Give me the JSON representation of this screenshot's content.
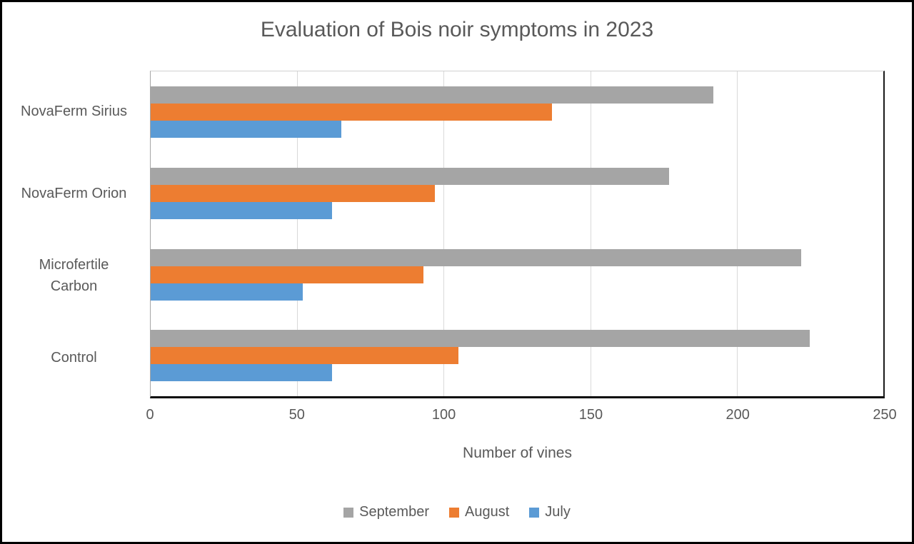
{
  "title": "Evaluation of Bois noir symptoms in 2023",
  "colors": {
    "september": "#a5a5a5",
    "august": "#ed7d31",
    "july": "#5b9bd5",
    "text": "#595959",
    "gridline": "#d9d9d9",
    "axis_line": "#000000",
    "frame_border": "#000000"
  },
  "chart_data": {
    "type": "bar",
    "orientation": "horizontal",
    "title": "Evaluation of Bois noir symptoms in 2023",
    "categories": [
      "NovaFerm Sirius",
      "NovaFerm Orion",
      "Microfertile Carbon",
      "Control"
    ],
    "series": [
      {
        "name": "September",
        "color": "#a5a5a5",
        "values": [
          192,
          177,
          222,
          225
        ]
      },
      {
        "name": "August",
        "color": "#ed7d31",
        "values": [
          137,
          97,
          93,
          105
        ]
      },
      {
        "name": "July",
        "color": "#5b9bd5",
        "values": [
          65,
          62,
          52,
          62
        ]
      }
    ],
    "bar_order_top_to_bottom": [
      "September",
      "August",
      "July"
    ],
    "xlabel": "Number of vines",
    "ylabel": "",
    "xlim": [
      0,
      250
    ],
    "xticks": [
      0,
      50,
      100,
      150,
      200,
      250
    ],
    "grid": true,
    "legend_position": "bottom",
    "legend_order": [
      "September",
      "August",
      "July"
    ]
  }
}
